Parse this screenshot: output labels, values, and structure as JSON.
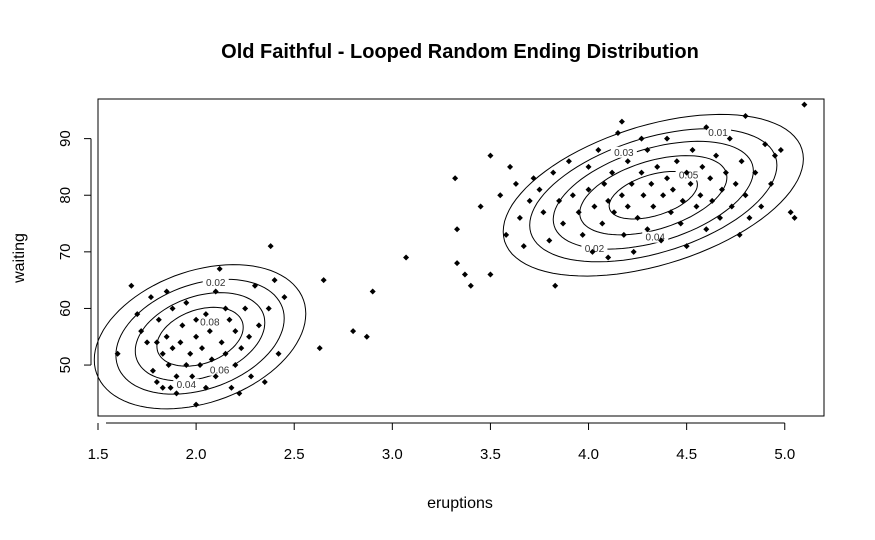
{
  "chart_data": {
    "type": "scatter",
    "title": "Old Faithful - Looped Random Ending Distribution",
    "xlabel": "eruptions",
    "ylabel": "waiting",
    "xlim": [
      1.5,
      5.2
    ],
    "ylim": [
      41,
      97
    ],
    "xticks": [
      "1.5",
      "2.0",
      "2.5",
      "3.0",
      "3.5",
      "4.0",
      "4.5",
      "5.0"
    ],
    "yticks": [
      "50",
      "60",
      "70",
      "80",
      "90"
    ],
    "grid": false,
    "point_color": "#000000",
    "contour_color": "#000000",
    "points": [
      [
        1.6,
        52
      ],
      [
        1.67,
        64
      ],
      [
        1.7,
        59
      ],
      [
        1.72,
        56
      ],
      [
        1.75,
        54
      ],
      [
        1.77,
        62
      ],
      [
        1.78,
        49
      ],
      [
        1.8,
        54
      ],
      [
        1.8,
        47
      ],
      [
        1.81,
        58
      ],
      [
        1.83,
        52
      ],
      [
        1.83,
        46
      ],
      [
        1.85,
        63
      ],
      [
        1.85,
        55
      ],
      [
        1.86,
        50
      ],
      [
        1.87,
        46
      ],
      [
        1.88,
        53
      ],
      [
        1.88,
        60
      ],
      [
        1.9,
        48
      ],
      [
        1.9,
        45
      ],
      [
        1.92,
        54
      ],
      [
        1.93,
        57
      ],
      [
        1.95,
        50
      ],
      [
        1.95,
        61
      ],
      [
        1.97,
        52
      ],
      [
        1.98,
        48
      ],
      [
        2.0,
        55
      ],
      [
        2.0,
        43
      ],
      [
        2.0,
        58
      ],
      [
        2.02,
        50
      ],
      [
        2.03,
        53
      ],
      [
        2.05,
        59
      ],
      [
        2.05,
        46
      ],
      [
        2.07,
        56
      ],
      [
        2.08,
        51
      ],
      [
        2.1,
        63
      ],
      [
        2.1,
        48
      ],
      [
        2.12,
        67
      ],
      [
        2.13,
        54
      ],
      [
        2.15,
        60
      ],
      [
        2.15,
        52
      ],
      [
        2.17,
        58
      ],
      [
        2.18,
        46
      ],
      [
        2.2,
        56
      ],
      [
        2.2,
        50
      ],
      [
        2.22,
        45
      ],
      [
        2.23,
        53
      ],
      [
        2.25,
        60
      ],
      [
        2.27,
        55
      ],
      [
        2.28,
        48
      ],
      [
        2.3,
        64
      ],
      [
        2.32,
        57
      ],
      [
        2.35,
        47
      ],
      [
        2.37,
        60
      ],
      [
        2.38,
        71
      ],
      [
        2.4,
        65
      ],
      [
        2.42,
        52
      ],
      [
        2.45,
        62
      ],
      [
        2.63,
        53
      ],
      [
        2.65,
        65
      ],
      [
        2.8,
        56
      ],
      [
        2.87,
        55
      ],
      [
        2.9,
        63
      ],
      [
        3.07,
        69
      ],
      [
        3.32,
        83
      ],
      [
        3.33,
        74
      ],
      [
        3.33,
        68
      ],
      [
        3.37,
        66
      ],
      [
        3.4,
        64
      ],
      [
        3.45,
        78
      ],
      [
        3.5,
        66
      ],
      [
        3.5,
        87
      ],
      [
        3.55,
        80
      ],
      [
        3.58,
        73
      ],
      [
        3.6,
        85
      ],
      [
        3.63,
        82
      ],
      [
        3.65,
        76
      ],
      [
        3.67,
        71
      ],
      [
        3.7,
        79
      ],
      [
        3.72,
        83
      ],
      [
        3.75,
        81
      ],
      [
        3.77,
        77
      ],
      [
        3.8,
        72
      ],
      [
        3.82,
        84
      ],
      [
        3.83,
        64
      ],
      [
        3.85,
        79
      ],
      [
        3.87,
        75
      ],
      [
        3.9,
        86
      ],
      [
        3.92,
        80
      ],
      [
        3.95,
        77
      ],
      [
        3.97,
        73
      ],
      [
        4.0,
        81
      ],
      [
        4.0,
        85
      ],
      [
        4.02,
        70
      ],
      [
        4.03,
        78
      ],
      [
        4.05,
        88
      ],
      [
        4.07,
        75
      ],
      [
        4.08,
        82
      ],
      [
        4.1,
        79
      ],
      [
        4.1,
        69
      ],
      [
        4.12,
        84
      ],
      [
        4.13,
        77
      ],
      [
        4.15,
        91
      ],
      [
        4.17,
        80
      ],
      [
        4.18,
        73
      ],
      [
        4.2,
        86
      ],
      [
        4.2,
        78
      ],
      [
        4.22,
        82
      ],
      [
        4.23,
        70
      ],
      [
        4.25,
        76
      ],
      [
        4.27,
        84
      ],
      [
        4.28,
        80
      ],
      [
        4.3,
        88
      ],
      [
        4.3,
        74
      ],
      [
        4.32,
        82
      ],
      [
        4.33,
        78
      ],
      [
        4.35,
        85
      ],
      [
        4.37,
        72
      ],
      [
        4.38,
        80
      ],
      [
        4.4,
        83
      ],
      [
        4.4,
        90
      ],
      [
        4.42,
        77
      ],
      [
        4.43,
        81
      ],
      [
        4.45,
        86
      ],
      [
        4.47,
        75
      ],
      [
        4.48,
        79
      ],
      [
        4.5,
        84
      ],
      [
        4.5,
        71
      ],
      [
        4.52,
        82
      ],
      [
        4.53,
        88
      ],
      [
        4.55,
        78
      ],
      [
        4.57,
        80
      ],
      [
        4.58,
        85
      ],
      [
        4.6,
        74
      ],
      [
        4.6,
        92
      ],
      [
        4.62,
        83
      ],
      [
        4.63,
        79
      ],
      [
        4.65,
        87
      ],
      [
        4.67,
        76
      ],
      [
        4.68,
        81
      ],
      [
        4.7,
        84
      ],
      [
        4.72,
        90
      ],
      [
        4.73,
        78
      ],
      [
        4.75,
        82
      ],
      [
        4.77,
        73
      ],
      [
        4.78,
        86
      ],
      [
        4.8,
        80
      ],
      [
        4.8,
        94
      ],
      [
        4.82,
        76
      ],
      [
        4.85,
        84
      ],
      [
        4.88,
        78
      ],
      [
        4.9,
        89
      ],
      [
        4.93,
        82
      ],
      [
        4.95,
        87
      ],
      [
        4.98,
        88
      ],
      [
        5.03,
        77
      ],
      [
        5.05,
        76
      ],
      [
        5.1,
        96
      ],
      [
        4.17,
        93
      ],
      [
        4.27,
        90
      ]
    ],
    "contours": [
      {
        "cx": 2.02,
        "cy": 55.0,
        "sx": 0.22,
        "sy": 5.2,
        "rho": 0.32,
        "levels": [
          {
            "label": "0.02",
            "r": 2.45
          },
          {
            "label": "0.04",
            "r": 1.95
          },
          {
            "label": "0.06",
            "r": 1.5
          },
          {
            "label": "0.08",
            "r": 1.0
          }
        ],
        "labels": [
          {
            "text": "0.02",
            "x": 2.1,
            "y": 64.5
          },
          {
            "text": "0.04",
            "x": 1.95,
            "y": 46.5
          },
          {
            "text": "0.06",
            "x": 2.12,
            "y": 49.0
          },
          {
            "text": "0.08",
            "x": 2.07,
            "y": 57.5
          }
        ]
      },
      {
        "cx": 4.33,
        "cy": 80.0,
        "sx": 0.3,
        "sy": 5.6,
        "rho": 0.45,
        "levels": [
          {
            "label": "0.01",
            "r": 2.55
          },
          {
            "label": "0.02",
            "r": 2.1
          },
          {
            "label": "0.03",
            "r": 1.7
          },
          {
            "label": "0.04",
            "r": 1.25
          },
          {
            "label": "0.05",
            "r": 0.75
          }
        ],
        "labels": [
          {
            "text": "0.01",
            "x": 4.66,
            "y": 91.0
          },
          {
            "text": "0.03",
            "x": 4.18,
            "y": 87.5
          },
          {
            "text": "0.05",
            "x": 4.51,
            "y": 83.5
          },
          {
            "text": "0.04",
            "x": 4.34,
            "y": 72.5
          },
          {
            "text": "0.02",
            "x": 4.03,
            "y": 70.5
          }
        ]
      }
    ]
  }
}
